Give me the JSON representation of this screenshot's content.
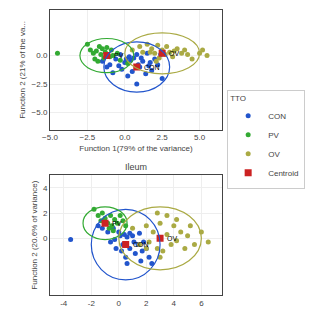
{
  "chart_data": [
    {
      "type": "scatter",
      "x_label": "Function 1(79% of the variance)",
      "y_label": "Function 2 (21% of the va...",
      "xlim": [
        -5.0,
        6.5
      ],
      "ylim": [
        -6.5,
        4.0
      ],
      "xticks": [
        {
          "value": -5.0,
          "label": "−5.0"
        },
        {
          "value": -2.5,
          "label": "−2.5"
        },
        {
          "value": 0.0,
          "label": "0.0"
        },
        {
          "value": 2.5,
          "label": "2.5"
        },
        {
          "value": 5.0,
          "label": "5.0"
        }
      ],
      "yticks": [
        {
          "value": -5.0,
          "label": "−5.0"
        },
        {
          "value": -2.5,
          "label": "−2.5"
        },
        {
          "value": 0.0,
          "label": "0.0"
        }
      ],
      "grid": true,
      "legend": "right",
      "legend_title": "TTO",
      "series": [
        {
          "name": "CON",
          "color": "#2255cc",
          "center": [
            0.8,
            -1.0
          ],
          "rx": 2.2,
          "ry": 2.2,
          "points": [
            [
              -1.5,
              -0.5
            ],
            [
              -1.2,
              -1.0
            ],
            [
              -1.0,
              -0.8
            ],
            [
              -0.8,
              -1.5
            ],
            [
              -0.6,
              -0.3
            ],
            [
              -0.4,
              -0.9
            ],
            [
              -0.2,
              -1.2
            ],
            [
              0.0,
              -0.6
            ],
            [
              0.2,
              -1.8
            ],
            [
              0.4,
              -0.4
            ],
            [
              0.5,
              -1.4
            ],
            [
              0.6,
              -0.2
            ],
            [
              0.8,
              -2.5
            ],
            [
              0.9,
              -0.8
            ],
            [
              1.0,
              -1.0
            ],
            [
              1.2,
              -0.5
            ],
            [
              1.4,
              -1.6
            ],
            [
              1.5,
              0.2
            ],
            [
              1.6,
              -0.9
            ],
            [
              1.8,
              -1.3
            ],
            [
              2.0,
              -0.3
            ],
            [
              2.2,
              -0.8
            ],
            [
              2.4,
              0.1
            ],
            [
              2.5,
              -2.0
            ],
            [
              0.3,
              -0.1
            ],
            [
              0.1,
              -0.3
            ],
            [
              -0.3,
              0.1
            ],
            [
              0.8,
              0.1
            ],
            [
              1.1,
              -0.2
            ],
            [
              1.7,
              -0.6
            ]
          ]
        },
        {
          "name": "PV",
          "color": "#33aa33",
          "center": [
            -1.2,
            0.0
          ],
          "rx": 1.8,
          "ry": 1.5,
          "points": [
            [
              -4.5,
              0.2
            ],
            [
              -2.5,
              1.0
            ],
            [
              -2.3,
              0.5
            ],
            [
              -2.1,
              0.2
            ],
            [
              -2.0,
              -0.3
            ],
            [
              -1.9,
              0.4
            ],
            [
              -1.8,
              -0.5
            ],
            [
              -1.7,
              0.8
            ],
            [
              -1.6,
              0.1
            ],
            [
              -1.5,
              0.6
            ],
            [
              -1.4,
              -0.2
            ],
            [
              -1.3,
              0.3
            ],
            [
              -1.2,
              0.7
            ],
            [
              -1.0,
              -0.1
            ],
            [
              -0.9,
              0.5
            ],
            [
              -0.8,
              0.0
            ],
            [
              -0.5,
              0.2
            ],
            [
              -0.3,
              -0.4
            ],
            [
              0.2,
              -0.7
            ]
          ]
        },
        {
          "name": "OV",
          "color": "#aaaa44",
          "center": [
            2.5,
            0.2
          ],
          "rx": 2.5,
          "ry": 1.8,
          "points": [
            [
              0.5,
              0.5
            ],
            [
              1.0,
              0.8
            ],
            [
              1.2,
              0.3
            ],
            [
              1.5,
              1.0
            ],
            [
              1.8,
              0.6
            ],
            [
              2.0,
              0.2
            ],
            [
              2.2,
              0.9
            ],
            [
              2.3,
              -0.2
            ],
            [
              2.5,
              0.5
            ],
            [
              2.7,
              0.1
            ],
            [
              2.8,
              0.8
            ],
            [
              3.0,
              0.3
            ],
            [
              3.2,
              -0.1
            ],
            [
              3.5,
              0.6
            ],
            [
              3.8,
              0.2
            ],
            [
              4.0,
              0.5
            ],
            [
              4.2,
              0.1
            ],
            [
              4.5,
              -0.3
            ],
            [
              5.0,
              0.2
            ],
            [
              5.2,
              0.5
            ],
            [
              5.5,
              0.0
            ],
            [
              1.7,
              0.3
            ],
            [
              2.1,
              -0.5
            ],
            [
              3.3,
              0.4
            ]
          ]
        }
      ],
      "centroid": {
        "name": "Centroid",
        "color": "#cc2222",
        "marker": "square"
      }
    },
    {
      "type": "scatter",
      "title": "Ileum",
      "y_label": "Function 2 (20.6% of variance)",
      "xlim": [
        -5.0,
        7.5
      ],
      "ylim": [
        -4.5,
        5.0
      ],
      "xticks": [
        -4,
        -2,
        0,
        2,
        4,
        6
      ],
      "yticks": [
        0,
        2,
        4
      ],
      "grid": true,
      "series": [
        {
          "name": "CON",
          "color": "#2255cc",
          "center": [
            0.5,
            -0.5
          ],
          "rx": 2.5,
          "ry": 2.8,
          "points": [
            [
              -3.5,
              -0.1
            ],
            [
              -1.5,
              1.0
            ],
            [
              -1.2,
              0.8
            ],
            [
              -1.0,
              1.2
            ],
            [
              -0.8,
              0.5
            ],
            [
              -0.6,
              -0.3
            ],
            [
              -0.4,
              0.8
            ],
            [
              -0.2,
              -0.8
            ],
            [
              0.0,
              0.5
            ],
            [
              0.2,
              -1.0
            ],
            [
              0.4,
              0.3
            ],
            [
              0.5,
              -1.5
            ],
            [
              0.6,
              0.1
            ],
            [
              0.8,
              -0.8
            ],
            [
              1.0,
              0.2
            ],
            [
              1.2,
              -1.2
            ],
            [
              1.4,
              -0.5
            ],
            [
              1.5,
              0.4
            ],
            [
              1.6,
              -1.8
            ],
            [
              1.8,
              -0.3
            ],
            [
              2.0,
              -0.8
            ],
            [
              2.2,
              -1.5
            ],
            [
              0.3,
              -0.5
            ],
            [
              0.1,
              0.2
            ],
            [
              -0.3,
              -0.1
            ],
            [
              0.8,
              0.4
            ],
            [
              1.1,
              -0.3
            ],
            [
              1.7,
              -1.0
            ],
            [
              0.6,
              -2.0
            ],
            [
              2.4,
              -2.0
            ]
          ]
        },
        {
          "name": "PV",
          "color": "#33aa33",
          "center": [
            -1.0,
            1.2
          ],
          "rx": 1.6,
          "ry": 1.3,
          "points": [
            [
              -1.8,
              2.3
            ],
            [
              -1.5,
              1.8
            ],
            [
              -1.3,
              1.4
            ],
            [
              -1.2,
              2.0
            ],
            [
              -1.0,
              1.6
            ],
            [
              -0.8,
              1.2
            ],
            [
              -0.6,
              1.8
            ],
            [
              -0.5,
              1.0
            ],
            [
              -0.3,
              1.5
            ],
            [
              -0.1,
              1.2
            ],
            [
              0.1,
              1.8
            ],
            [
              0.3,
              1.4
            ],
            [
              0.5,
              1.0
            ],
            [
              -0.7,
              0.8
            ],
            [
              -0.4,
              0.6
            ]
          ]
        },
        {
          "name": "OV",
          "color": "#aaaa44",
          "center": [
            3.0,
            0.0
          ],
          "rx": 3.0,
          "ry": 2.5,
          "points": [
            [
              1.0,
              0.8
            ],
            [
              1.5,
              -0.5
            ],
            [
              2.0,
              1.0
            ],
            [
              2.2,
              -0.3
            ],
            [
              2.5,
              0.5
            ],
            [
              2.8,
              -0.8
            ],
            [
              3.0,
              1.2
            ],
            [
              3.2,
              -1.0
            ],
            [
              3.5,
              0.3
            ],
            [
              3.8,
              -0.5
            ],
            [
              4.0,
              1.0
            ],
            [
              4.2,
              -0.2
            ],
            [
              4.5,
              0.5
            ],
            [
              4.8,
              -0.8
            ],
            [
              5.0,
              0.2
            ],
            [
              5.2,
              1.0
            ],
            [
              5.5,
              -0.5
            ],
            [
              6.0,
              0.5
            ],
            [
              6.5,
              -0.3
            ],
            [
              2.8,
              2.0
            ],
            [
              3.5,
              1.8
            ],
            [
              4.2,
              1.5
            ],
            [
              3.0,
              -1.5
            ],
            [
              2.0,
              -0.8
            ]
          ]
        }
      ],
      "centroid": {
        "name": "Centroid",
        "color": "#cc2222",
        "marker": "square"
      }
    }
  ]
}
